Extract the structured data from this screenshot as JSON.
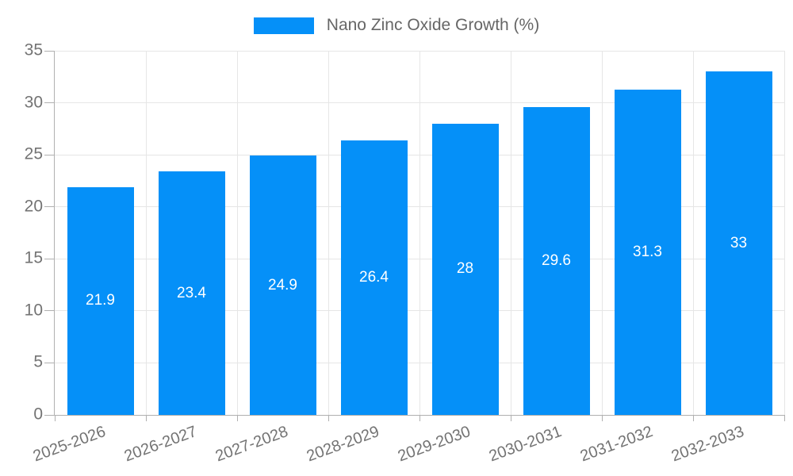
{
  "chart_data": {
    "type": "bar",
    "title": "Nano Zinc Oxide Growth (%)",
    "legend": {
      "label": "Nano Zinc Oxide Growth (%)",
      "position": "top-center"
    },
    "categories": [
      "2025-2026",
      "2026-2027",
      "2027-2028",
      "2028-2029",
      "2029-2030",
      "2030-2031",
      "2031-2032",
      "2032-2033"
    ],
    "series": [
      {
        "name": "Nano Zinc Oxide Growth (%)",
        "values": [
          21.9,
          23.4,
          24.9,
          26.4,
          28,
          29.6,
          31.3,
          33
        ]
      }
    ],
    "xlabel": "",
    "ylabel": "",
    "ylim": [
      0,
      35
    ],
    "yticks": [
      0,
      5,
      10,
      15,
      20,
      25,
      30,
      35
    ],
    "grid": true,
    "bar_labels_inside": true,
    "colors": {
      "bar": "#0590f8",
      "bar_label_text": "#ffffff",
      "axis_line": "#b0b0b0",
      "gridline": "#e6e6e6",
      "tick_text": "#737373",
      "legend_text": "#666666",
      "background": "#ffffff"
    }
  }
}
